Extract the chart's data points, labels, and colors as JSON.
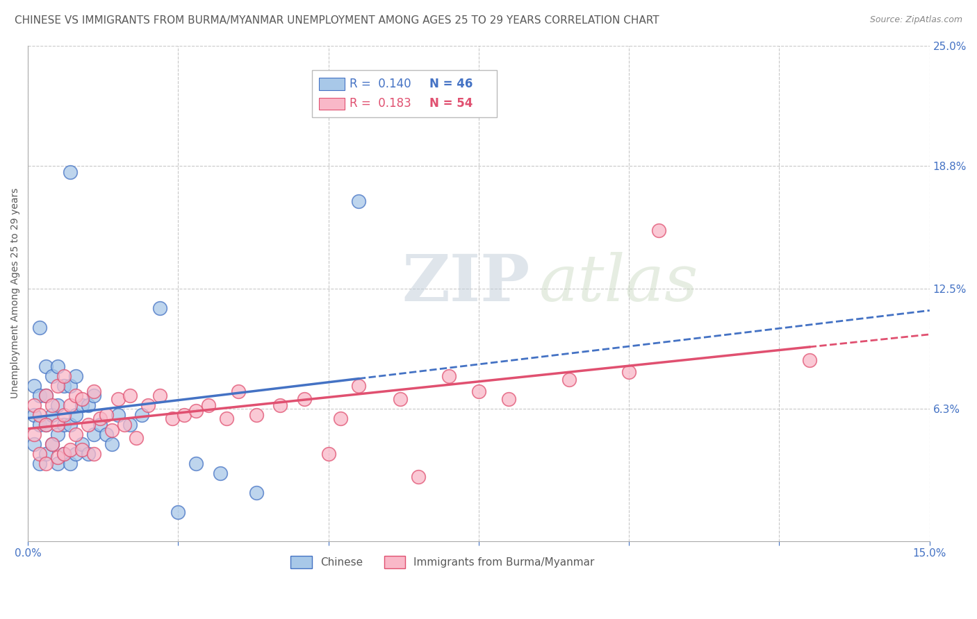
{
  "title": "CHINESE VS IMMIGRANTS FROM BURMA/MYANMAR UNEMPLOYMENT AMONG AGES 25 TO 29 YEARS CORRELATION CHART",
  "source": "Source: ZipAtlas.com",
  "ylabel": "Unemployment Among Ages 25 to 29 years",
  "xlim": [
    0.0,
    0.15
  ],
  "ylim": [
    -0.005,
    0.25
  ],
  "xticks": [
    0.0,
    0.025,
    0.05,
    0.075,
    0.1,
    0.125,
    0.15
  ],
  "ytick_positions_right": [
    0.063,
    0.125,
    0.188,
    0.25
  ],
  "ytick_labels_right": [
    "6.3%",
    "12.5%",
    "18.8%",
    "25.0%"
  ],
  "color_chinese": "#A8C8E8",
  "color_burma": "#F9B8C8",
  "color_line_chinese": "#4472C4",
  "color_line_burma": "#E05070",
  "color_text_blue": "#4472C4",
  "color_text_pink": "#E05070",
  "color_text_dark": "#595959",
  "watermark_zip": "ZIP",
  "watermark_atlas": "atlas",
  "background_color": "#FFFFFF",
  "grid_color": "#C8C8C8",
  "chinese_x": [
    0.001,
    0.001,
    0.001,
    0.002,
    0.002,
    0.002,
    0.003,
    0.003,
    0.003,
    0.003,
    0.004,
    0.004,
    0.004,
    0.005,
    0.005,
    0.005,
    0.005,
    0.006,
    0.006,
    0.006,
    0.007,
    0.007,
    0.007,
    0.008,
    0.008,
    0.008,
    0.009,
    0.009,
    0.01,
    0.01,
    0.011,
    0.011,
    0.012,
    0.013,
    0.014,
    0.015,
    0.017,
    0.019,
    0.022,
    0.025,
    0.028,
    0.032,
    0.038,
    0.055,
    0.002,
    0.007
  ],
  "chinese_y": [
    0.045,
    0.06,
    0.075,
    0.035,
    0.055,
    0.07,
    0.04,
    0.055,
    0.07,
    0.085,
    0.045,
    0.06,
    0.08,
    0.035,
    0.05,
    0.065,
    0.085,
    0.04,
    0.055,
    0.075,
    0.035,
    0.055,
    0.075,
    0.04,
    0.06,
    0.08,
    0.045,
    0.065,
    0.04,
    0.065,
    0.05,
    0.07,
    0.055,
    0.05,
    0.045,
    0.06,
    0.055,
    0.06,
    0.115,
    0.01,
    0.035,
    0.03,
    0.02,
    0.17,
    0.105,
    0.185
  ],
  "burma_x": [
    0.001,
    0.001,
    0.002,
    0.002,
    0.003,
    0.003,
    0.003,
    0.004,
    0.004,
    0.005,
    0.005,
    0.005,
    0.006,
    0.006,
    0.006,
    0.007,
    0.007,
    0.008,
    0.008,
    0.009,
    0.009,
    0.01,
    0.011,
    0.011,
    0.012,
    0.013,
    0.014,
    0.015,
    0.016,
    0.017,
    0.018,
    0.02,
    0.022,
    0.024,
    0.026,
    0.028,
    0.03,
    0.033,
    0.035,
    0.038,
    0.042,
    0.046,
    0.05,
    0.055,
    0.065,
    0.07,
    0.075,
    0.08,
    0.09,
    0.1,
    0.052,
    0.062,
    0.105,
    0.13
  ],
  "burma_y": [
    0.05,
    0.065,
    0.04,
    0.06,
    0.035,
    0.055,
    0.07,
    0.045,
    0.065,
    0.038,
    0.055,
    0.075,
    0.04,
    0.06,
    0.08,
    0.042,
    0.065,
    0.05,
    0.07,
    0.042,
    0.068,
    0.055,
    0.04,
    0.072,
    0.058,
    0.06,
    0.052,
    0.068,
    0.055,
    0.07,
    0.048,
    0.065,
    0.07,
    0.058,
    0.06,
    0.062,
    0.065,
    0.058,
    0.072,
    0.06,
    0.065,
    0.068,
    0.04,
    0.075,
    0.028,
    0.08,
    0.072,
    0.068,
    0.078,
    0.082,
    0.058,
    0.068,
    0.155,
    0.088
  ],
  "chinese_line_solid_end": 0.055,
  "burma_line_solid_end": 0.13,
  "title_fontsize": 11,
  "tick_fontsize": 11,
  "ylabel_fontsize": 10
}
